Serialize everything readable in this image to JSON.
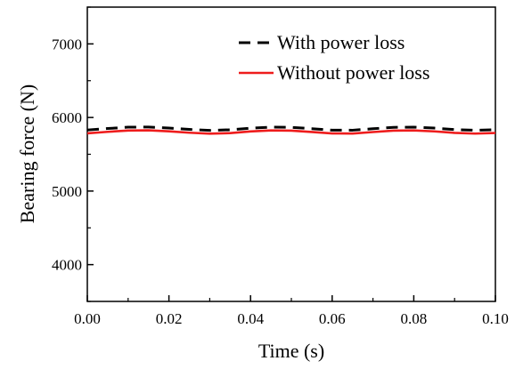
{
  "chart_data": {
    "type": "line",
    "xlabel": "Time (s)",
    "ylabel": "Bearing force (N)",
    "xlim": [
      0.0,
      0.1
    ],
    "ylim": [
      3500,
      7500
    ],
    "x_ticks": [
      "0.00",
      "0.02",
      "0.04",
      "0.06",
      "0.08",
      "0.10"
    ],
    "y_ticks": [
      "4000",
      "5000",
      "6000",
      "7000"
    ],
    "grid": false,
    "legend_position": "top-right",
    "series": [
      {
        "name": "With power loss",
        "color": "#000000",
        "style": "dashed",
        "x": [
          0.0,
          0.005,
          0.01,
          0.015,
          0.02,
          0.025,
          0.03,
          0.035,
          0.04,
          0.045,
          0.05,
          0.055,
          0.06,
          0.065,
          0.07,
          0.075,
          0.08,
          0.085,
          0.09,
          0.095,
          0.1
        ],
        "y": [
          5830,
          5850,
          5868,
          5870,
          5857,
          5838,
          5825,
          5833,
          5855,
          5869,
          5866,
          5848,
          5828,
          5827,
          5847,
          5866,
          5869,
          5856,
          5836,
          5826,
          5834
        ]
      },
      {
        "name": "Without power loss",
        "color": "#ee1c1c",
        "style": "solid",
        "x": [
          0.0,
          0.005,
          0.01,
          0.015,
          0.02,
          0.025,
          0.03,
          0.035,
          0.04,
          0.045,
          0.05,
          0.055,
          0.06,
          0.065,
          0.07,
          0.075,
          0.08,
          0.085,
          0.09,
          0.095,
          0.1
        ],
        "y": [
          5785,
          5805,
          5823,
          5826,
          5812,
          5793,
          5780,
          5788,
          5810,
          5824,
          5821,
          5803,
          5783,
          5782,
          5802,
          5821,
          5824,
          5811,
          5791,
          5781,
          5789
        ]
      }
    ]
  }
}
